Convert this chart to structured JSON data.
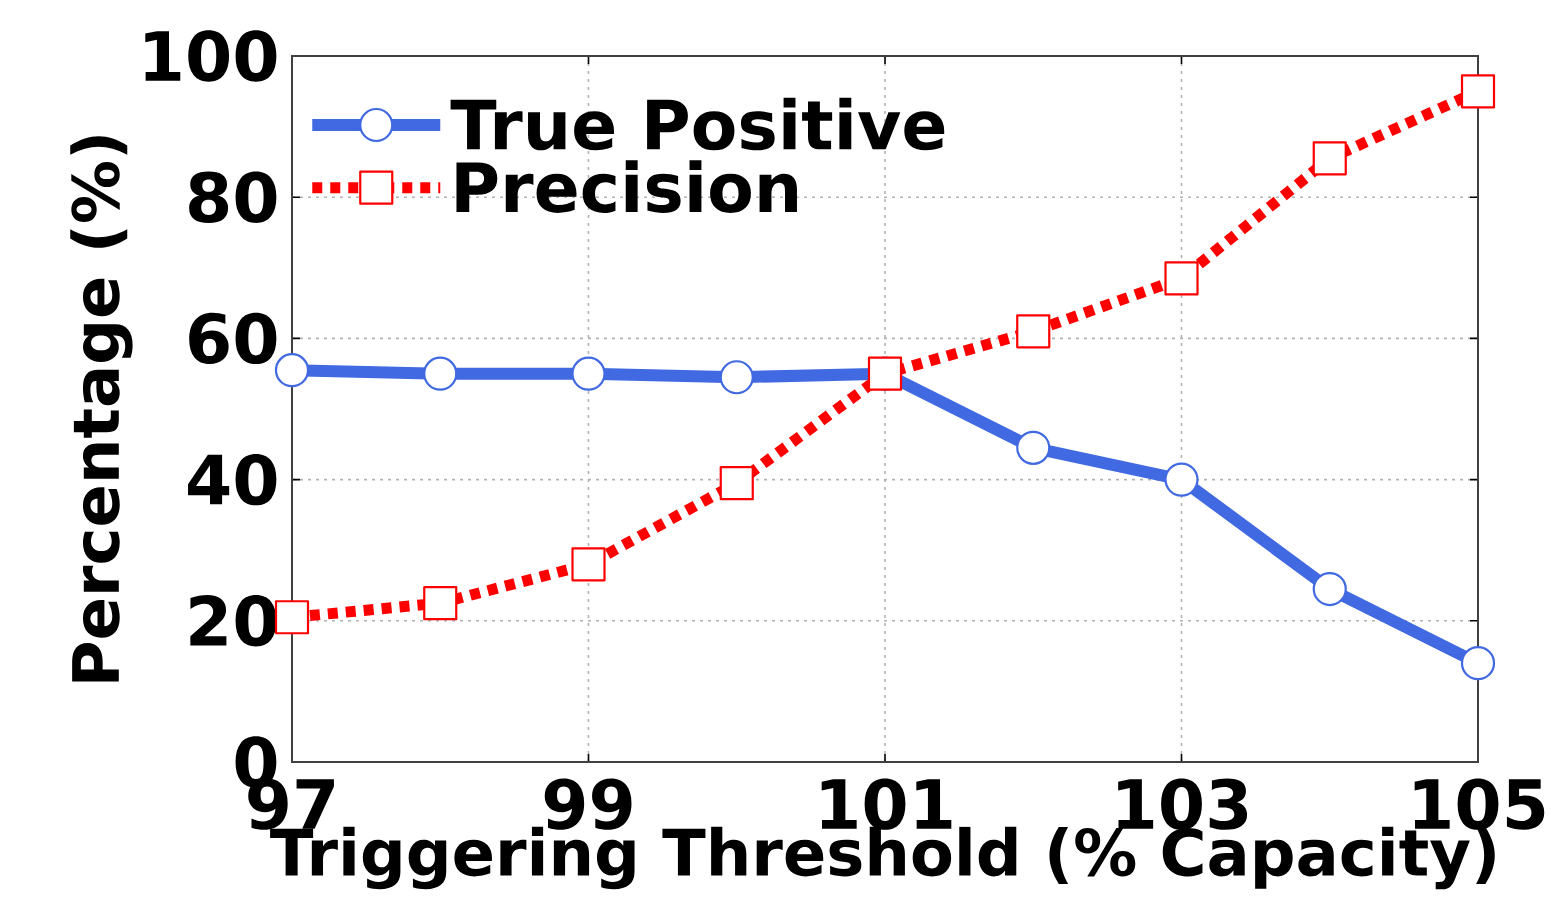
{
  "chart_data": {
    "type": "line",
    "xlabel": "Triggering Threshold (% Capacity)",
    "ylabel": "Percentage (%)",
    "x": [
      97,
      98,
      99,
      100,
      101,
      102,
      103,
      104,
      105
    ],
    "xlim": [
      97,
      105
    ],
    "ylim": [
      0,
      100
    ],
    "xticks": [
      97,
      99,
      101,
      103,
      105
    ],
    "yticks": [
      0,
      20,
      40,
      60,
      80,
      100
    ],
    "grid": true,
    "legend": "top left",
    "series": [
      {
        "name": "True Positive",
        "color": "#4169e1",
        "marker": "circle",
        "line_style": "solid",
        "values": [
          55.5,
          55,
          55,
          54.5,
          55,
          44.5,
          40,
          24.5,
          14
        ]
      },
      {
        "name": "Precision",
        "color": "#ff0000",
        "marker": "square",
        "line_style": "dotted",
        "values": [
          20.5,
          22.5,
          28,
          39.5,
          55,
          61,
          68.5,
          85.5,
          95
        ]
      }
    ]
  }
}
